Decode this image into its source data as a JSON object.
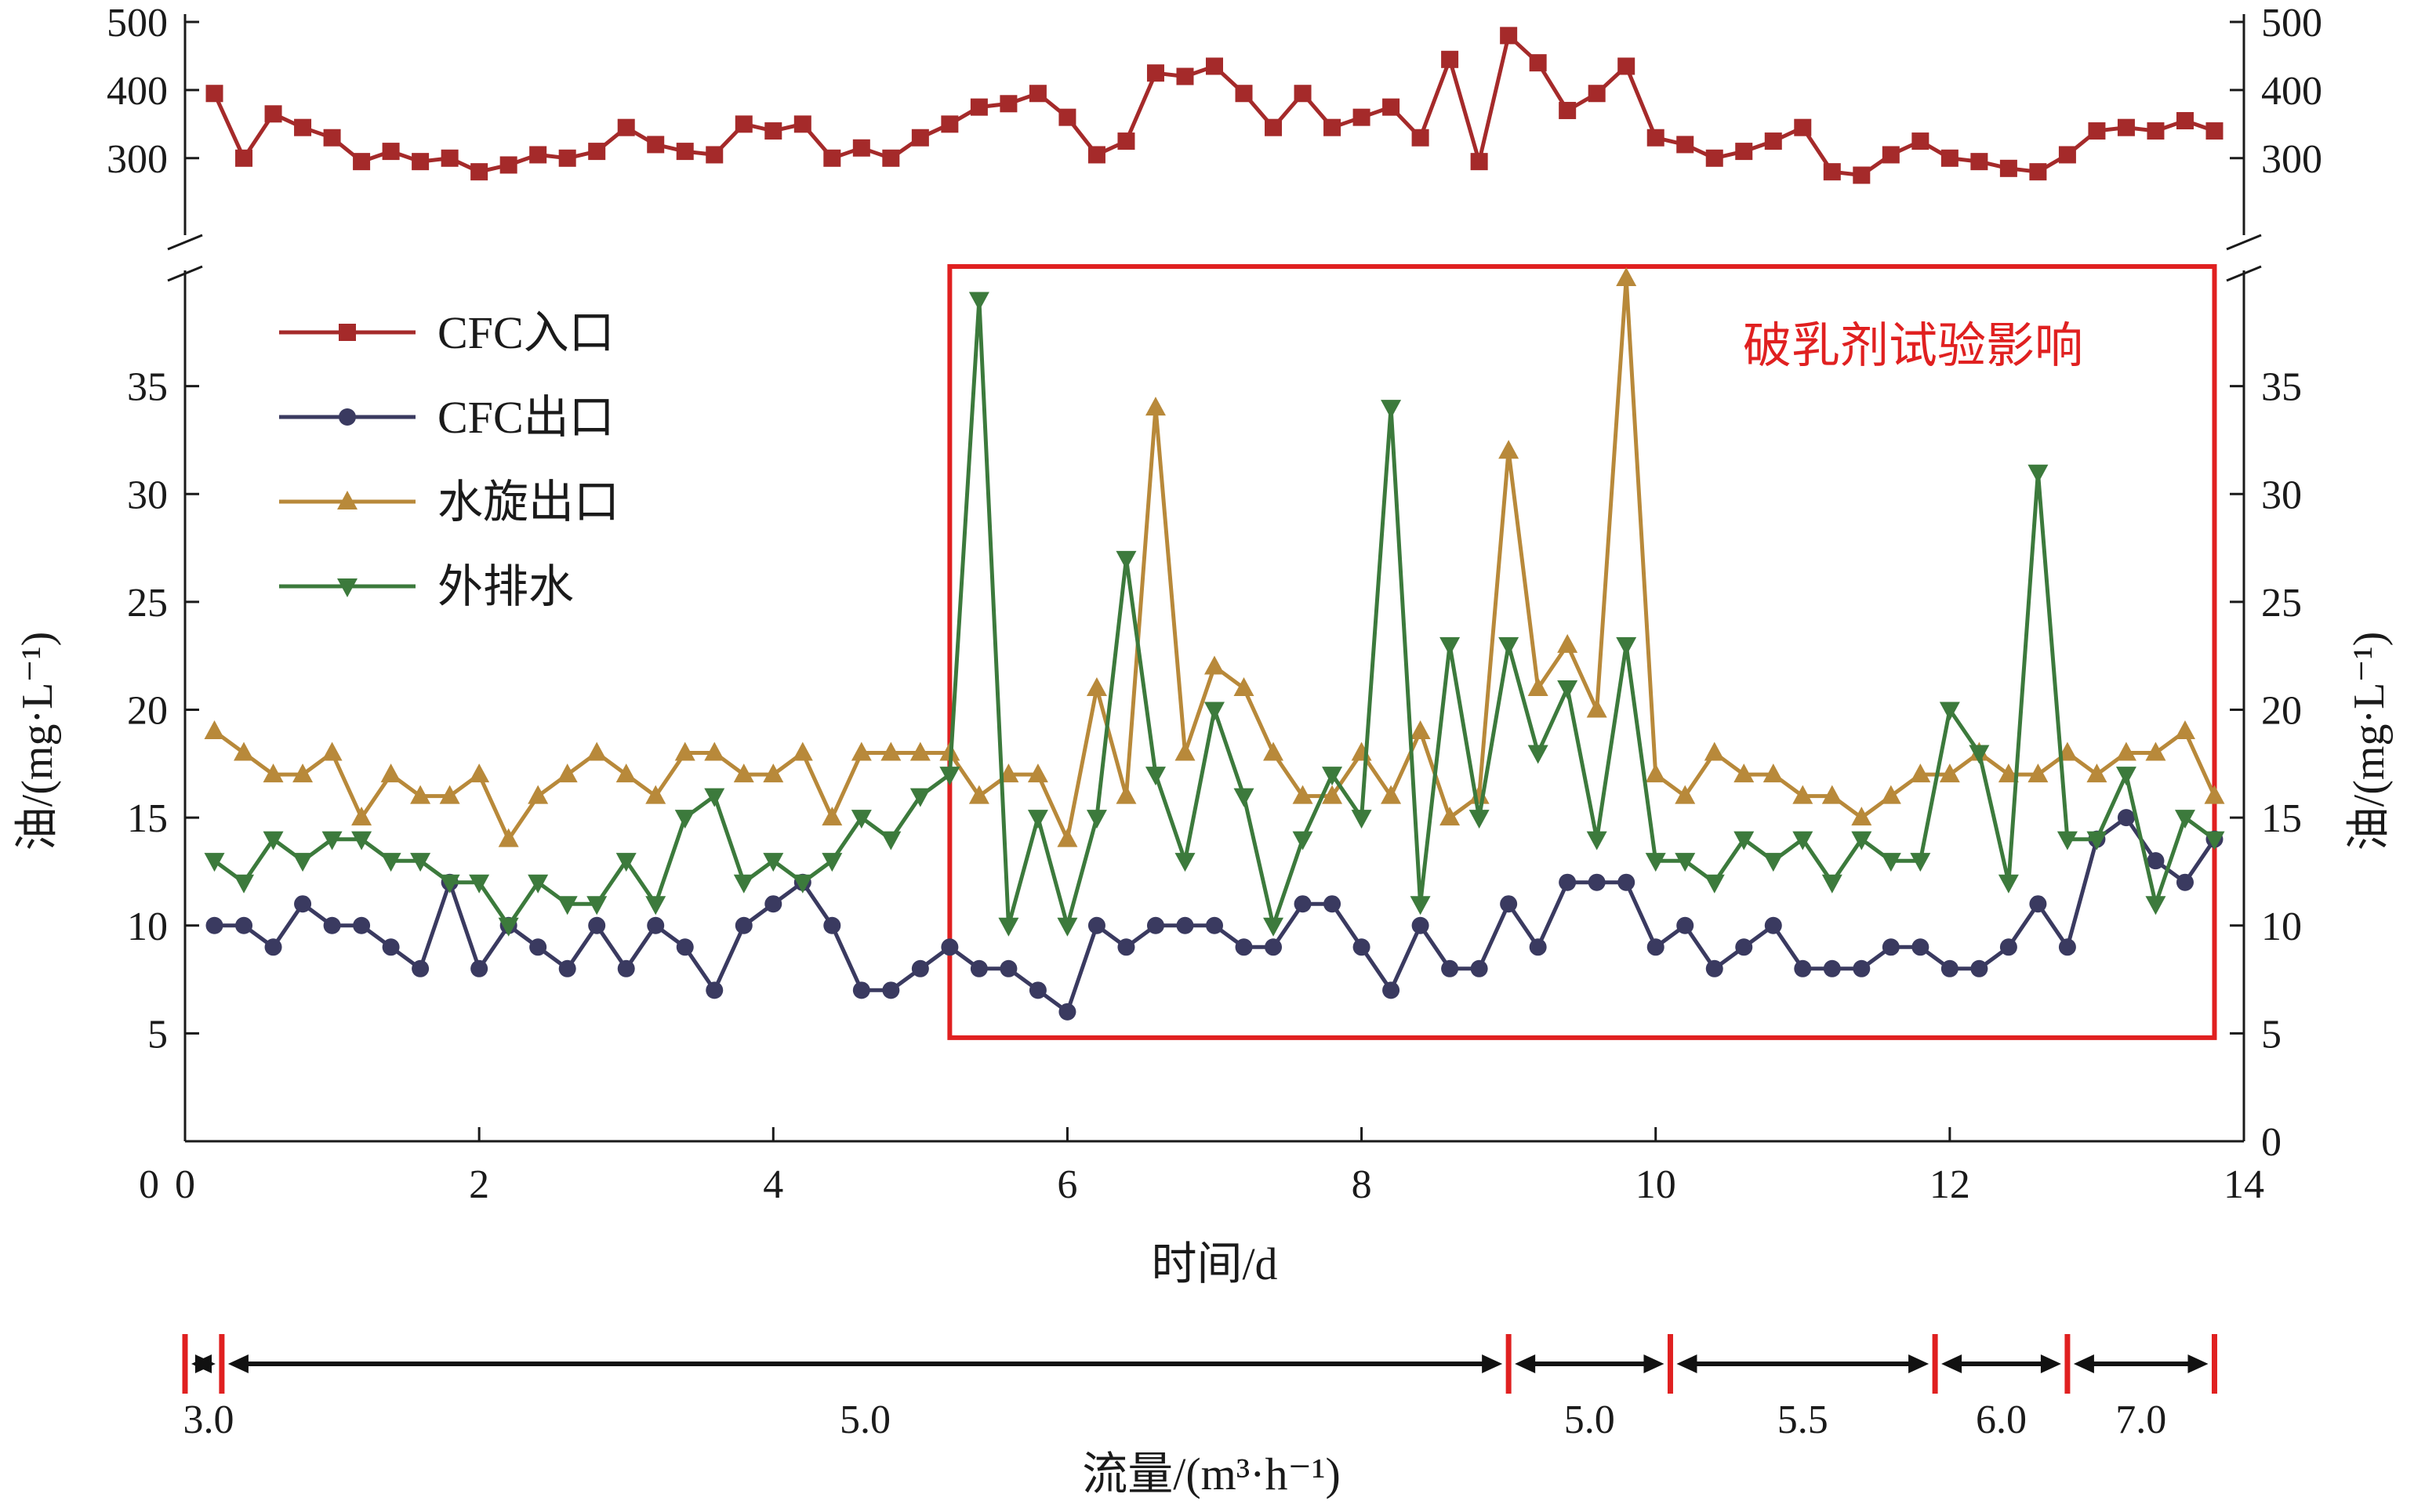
{
  "chart_data": {
    "type": "line",
    "xlabel": "时间/d",
    "ylabel_left": "油/(mg·L⁻¹)",
    "ylabel_right": "油/(mg·L⁻¹)",
    "xlim": [
      0,
      14
    ],
    "x_ticks": [
      "0",
      "2",
      "4",
      "6",
      "8",
      "10",
      "12",
      "14"
    ],
    "upper_panel": {
      "ylim": [
        210,
        500
      ],
      "ticks": [
        "300",
        "400",
        "500"
      ]
    },
    "lower_panel": {
      "ylim": [
        0,
        40
      ],
      "ticks_left": [
        "5",
        "10",
        "15",
        "20",
        "25",
        "30",
        "35"
      ],
      "ticks_right": [
        "0",
        "5",
        "10",
        "15",
        "20",
        "25",
        "30",
        "35"
      ]
    },
    "axis_break": true,
    "legend_position": "upper-left",
    "annotation": {
      "text": "破乳剂试验影响",
      "x_range": [
        5.2,
        13.8
      ],
      "y_range": [
        4.8,
        40
      ],
      "color": "#e02020"
    },
    "series": [
      {
        "name": "CFC入口",
        "panel": "upper",
        "color": "#a52a2a",
        "marker": "square",
        "x": [
          0.2,
          0.4,
          0.6,
          0.8,
          1.0,
          1.2,
          1.4,
          1.6,
          1.8,
          2.0,
          2.2,
          2.4,
          2.6,
          2.8,
          3.0,
          3.2,
          3.4,
          3.6,
          3.8,
          4.0,
          4.2,
          4.4,
          4.6,
          4.8,
          5.0,
          5.2,
          5.4,
          5.6,
          5.8,
          6.0,
          6.2,
          6.4,
          6.6,
          6.8,
          7.0,
          7.2,
          7.4,
          7.6,
          7.8,
          8.0,
          8.2,
          8.4,
          8.6,
          8.8,
          9.0,
          9.2,
          9.4,
          9.6,
          9.8,
          10.0,
          10.2,
          10.4,
          10.6,
          10.8,
          11.0,
          11.2,
          11.4,
          11.6,
          11.8,
          12.0,
          12.2,
          12.4,
          12.6,
          12.8,
          13.0,
          13.2,
          13.4,
          13.6,
          13.8
        ],
        "values": [
          395,
          300,
          365,
          345,
          330,
          295,
          310,
          295,
          300,
          280,
          290,
          305,
          300,
          310,
          345,
          320,
          310,
          305,
          350,
          340,
          350,
          300,
          315,
          300,
          330,
          350,
          375,
          380,
          395,
          360,
          305,
          325,
          425,
          420,
          435,
          395,
          345,
          395,
          345,
          360,
          375,
          330,
          445,
          295,
          480,
          440,
          370,
          395,
          435,
          330,
          320,
          300,
          310,
          325,
          345,
          280,
          275,
          305,
          325,
          300,
          295,
          285,
          280,
          305,
          340,
          345,
          340,
          355,
          340
        ]
      },
      {
        "name": "CFC出口",
        "panel": "lower",
        "color": "#3a3a60",
        "marker": "circle",
        "x": [
          0.2,
          0.4,
          0.6,
          0.8,
          1.0,
          1.2,
          1.4,
          1.6,
          1.8,
          2.0,
          2.2,
          2.4,
          2.6,
          2.8,
          3.0,
          3.2,
          3.4,
          3.6,
          3.8,
          4.0,
          4.2,
          4.4,
          4.6,
          4.8,
          5.0,
          5.2,
          5.4,
          5.6,
          5.8,
          6.0,
          6.2,
          6.4,
          6.6,
          6.8,
          7.0,
          7.2,
          7.4,
          7.6,
          7.8,
          8.0,
          8.2,
          8.4,
          8.6,
          8.8,
          9.0,
          9.2,
          9.4,
          9.6,
          9.8,
          10.0,
          10.2,
          10.4,
          10.6,
          10.8,
          11.0,
          11.2,
          11.4,
          11.6,
          11.8,
          12.0,
          12.2,
          12.4,
          12.6,
          12.8,
          13.0,
          13.2,
          13.4,
          13.6,
          13.8
        ],
        "values": [
          10,
          10,
          9,
          11,
          10,
          10,
          9,
          8,
          12,
          8,
          10,
          9,
          8,
          10,
          8,
          10,
          9,
          7,
          10,
          11,
          12,
          10,
          7,
          7,
          8,
          9,
          8,
          8,
          7,
          6,
          10,
          9,
          10,
          10,
          10,
          9,
          9,
          11,
          11,
          9,
          7,
          10,
          8,
          8,
          11,
          9,
          12,
          12,
          12,
          9,
          10,
          8,
          9,
          10,
          8,
          8,
          8,
          9,
          9,
          8,
          8,
          9,
          11,
          9,
          14,
          15,
          13,
          12,
          14
        ]
      },
      {
        "name": "水旋出口",
        "panel": "lower",
        "color": "#b8893a",
        "marker": "triangle-up",
        "x": [
          0.2,
          0.4,
          0.6,
          0.8,
          1.0,
          1.2,
          1.4,
          1.6,
          1.8,
          2.0,
          2.2,
          2.4,
          2.6,
          2.8,
          3.0,
          3.2,
          3.4,
          3.6,
          3.8,
          4.0,
          4.2,
          4.4,
          4.6,
          4.8,
          5.0,
          5.2,
          5.4,
          5.6,
          5.8,
          6.0,
          6.2,
          6.4,
          6.6,
          6.8,
          7.0,
          7.2,
          7.4,
          7.6,
          7.8,
          8.0,
          8.2,
          8.4,
          8.6,
          8.8,
          9.0,
          9.2,
          9.4,
          9.6,
          9.8,
          10.0,
          10.2,
          10.4,
          10.6,
          10.8,
          11.0,
          11.2,
          11.4,
          11.6,
          11.8,
          12.0,
          12.2,
          12.4,
          12.6,
          12.8,
          13.0,
          13.2,
          13.4,
          13.6,
          13.8
        ],
        "values": [
          19,
          18,
          17,
          17,
          18,
          15,
          17,
          16,
          16,
          17,
          14,
          16,
          17,
          18,
          17,
          16,
          18,
          18,
          17,
          17,
          18,
          15,
          18,
          18,
          18,
          18,
          16,
          17,
          17,
          14,
          21,
          16,
          34,
          18,
          22,
          21,
          18,
          16,
          16,
          18,
          16,
          19,
          15,
          16,
          32,
          21,
          23,
          20,
          40,
          17,
          16,
          18,
          17,
          17,
          16,
          16,
          15,
          16,
          17,
          17,
          18,
          17,
          17,
          18,
          17,
          18,
          18,
          19,
          16
        ]
      },
      {
        "name": "外排水",
        "panel": "lower",
        "color": "#3c7a3c",
        "marker": "triangle-down",
        "x": [
          0.2,
          0.4,
          0.6,
          0.8,
          1.0,
          1.2,
          1.4,
          1.6,
          1.8,
          2.0,
          2.2,
          2.4,
          2.6,
          2.8,
          3.0,
          3.2,
          3.4,
          3.6,
          3.8,
          4.0,
          4.2,
          4.4,
          4.6,
          4.8,
          5.0,
          5.2,
          5.4,
          5.6,
          5.8,
          6.0,
          6.2,
          6.4,
          6.6,
          6.8,
          7.0,
          7.2,
          7.4,
          7.6,
          7.8,
          8.0,
          8.2,
          8.4,
          8.6,
          8.8,
          9.0,
          9.2,
          9.4,
          9.6,
          9.8,
          10.0,
          10.2,
          10.4,
          10.6,
          10.8,
          11.0,
          11.2,
          11.4,
          11.6,
          11.8,
          12.0,
          12.2,
          12.4,
          12.6,
          12.8,
          13.0,
          13.2,
          13.4,
          13.6,
          13.8
        ],
        "values": [
          13,
          12,
          14,
          13,
          14,
          14,
          13,
          13,
          12,
          12,
          10,
          12,
          11,
          11,
          13,
          11,
          15,
          16,
          12,
          13,
          12,
          13,
          15,
          14,
          16,
          17,
          39,
          10,
          15,
          10,
          15,
          27,
          17,
          13,
          20,
          16,
          10,
          14,
          17,
          15,
          34,
          11,
          23,
          15,
          23,
          18,
          21,
          14,
          23,
          13,
          13,
          12,
          14,
          13,
          14,
          12,
          14,
          13,
          13,
          20,
          18,
          12,
          31,
          14,
          14,
          17,
          11,
          15,
          14
        ]
      }
    ],
    "flow_axis": {
      "label": "流量/(m³·h⁻¹)",
      "segments": [
        {
          "label": "3.0",
          "from": 0.0,
          "to": 0.25
        },
        {
          "label": "5.0",
          "from": 0.25,
          "to": 9.0
        },
        {
          "label": "5.0",
          "from": 9.0,
          "to": 10.1
        },
        {
          "label": "5.5",
          "from": 10.1,
          "to": 11.9
        },
        {
          "label": "6.0",
          "from": 11.9,
          "to": 12.8
        },
        {
          "label": "7.0",
          "from": 12.8,
          "to": 13.8
        }
      ]
    }
  }
}
